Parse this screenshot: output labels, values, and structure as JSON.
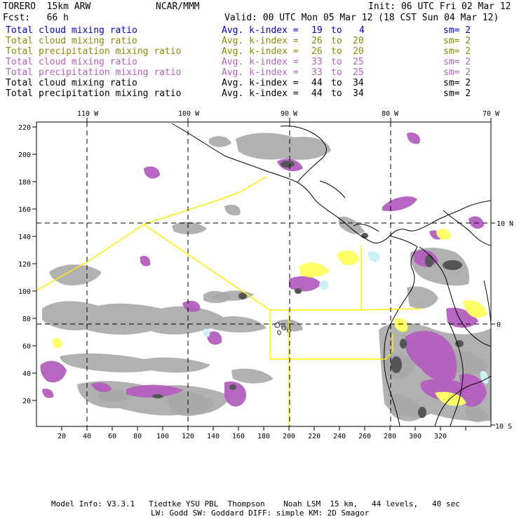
{
  "header": {
    "model": "TORERO  15km ARW",
    "org": "NCAR/MMM",
    "init": "Init: 06 UTC Fri 02 Mar 12",
    "fcst": "Fcst:   66 h",
    "valid": "Valid: 00 UTC Mon 05 Mar 12 (18 CST Sun 04 Mar 12)"
  },
  "legend": [
    {
      "label": "Total cloud mixing ratio",
      "avg": "Avg. k-index =",
      "k1": "19",
      "to": "to",
      "k2": "4",
      "sm": "sm= 2",
      "color": "#0000dd"
    },
    {
      "label": "Total cloud mixing ratio",
      "avg": "Avg. k-index =",
      "k1": "26",
      "to": "to",
      "k2": "20",
      "sm": "sm= 2",
      "color": "#8b8b00"
    },
    {
      "label": "Total precipitation mixing ratio",
      "avg": "Avg. k-index =",
      "k1": "26",
      "to": "to",
      "k2": "20",
      "sm": "sm= 2",
      "color": "#8b8b00"
    },
    {
      "label": "Total cloud mixing ratio",
      "avg": "Avg. k-index =",
      "k1": "33",
      "to": "to",
      "k2": "25",
      "sm": "sm= 2",
      "color": "#b35fbf"
    },
    {
      "label": "Total precipitation mixing ratio",
      "avg": "Avg. k-index =",
      "k1": "33",
      "to": "to",
      "k2": "25",
      "sm": "sm= 2",
      "color": "#b35fbf"
    },
    {
      "label": "Total cloud mixing ratio",
      "avg": "Avg. k-index =",
      "k1": "44",
      "to": "to",
      "k2": "34",
      "sm": "sm= 2",
      "color": "#000000"
    },
    {
      "label": "Total precipitation mixing ratio",
      "avg": "Avg. k-index =",
      "k1": "44",
      "to": "to",
      "k2": "34",
      "sm": "sm= 2",
      "color": "#000000"
    }
  ],
  "map": {
    "lon_labels": [
      "110 W",
      "100 W",
      "90 W",
      "80 W",
      "70 W"
    ],
    "lat_labels": [
      "10 N",
      "0",
      "10 S"
    ],
    "x_ticks": [
      "20",
      "40",
      "60",
      "80",
      "100",
      "120",
      "140",
      "160",
      "180",
      "200",
      "220",
      "240",
      "260",
      "280",
      "300",
      "320"
    ],
    "y_ticks": [
      "220",
      "200",
      "180",
      "160",
      "140",
      "120",
      "100",
      "80",
      "60",
      "40",
      "20"
    ],
    "colors": {
      "gray": "#a9a9a9",
      "dark": "#555555",
      "yellow": "#ffff66",
      "purple": "#b35fbf",
      "cyan": "#ccf2f8",
      "outline": "#ffee00"
    }
  },
  "footer": {
    "line1": "Model Info: V3.3.1   Tiedtke YSU PBL  Thompson    Noah LSM  15 km,   44 levels,   40 sec",
    "line2": "LW: Godd SW: Goddard DIFF: simple KM: 2D Smagor"
  }
}
